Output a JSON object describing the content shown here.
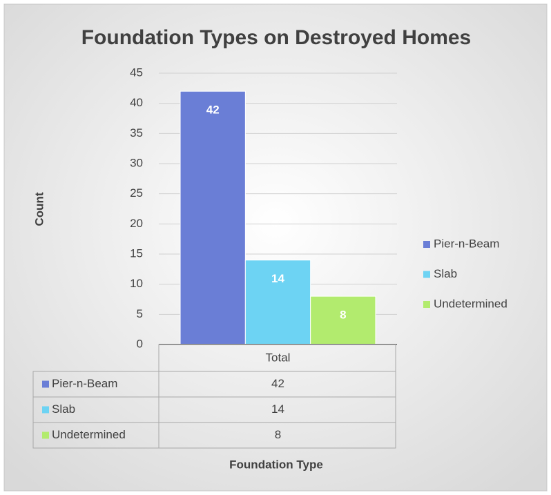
{
  "chart_data": {
    "type": "bar",
    "title": "Foundation Types on Destroyed Homes",
    "y_label": "Count",
    "x_label": "Foundation Type",
    "categories": [
      "Total"
    ],
    "series": [
      {
        "name": "Pier-n-Beam",
        "color": "#6a7ed6",
        "values": [
          42
        ]
      },
      {
        "name": "Slab",
        "color": "#6dd3f3",
        "values": [
          14
        ]
      },
      {
        "name": "Undetermined",
        "color": "#b2eb6e",
        "values": [
          8
        ]
      }
    ],
    "ylim": [
      0,
      45
    ],
    "yticks": [
      0,
      5,
      10,
      15,
      20,
      25,
      30,
      35,
      40,
      45
    ],
    "grid": true,
    "legend": "right",
    "data_table": true
  }
}
